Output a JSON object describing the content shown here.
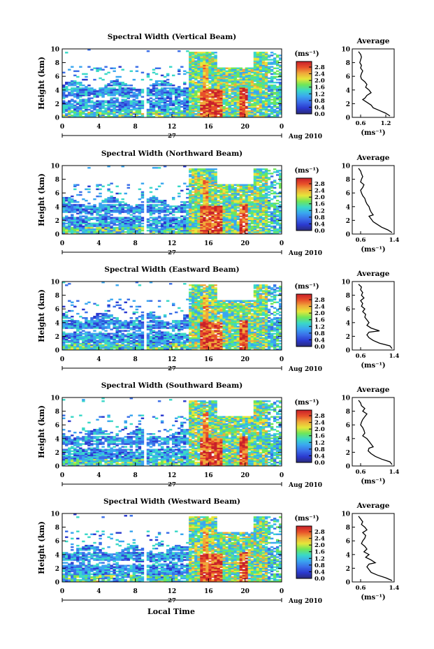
{
  "figure": {
    "xlabel": "Local Time",
    "colorbar_unit": "(ms⁻¹)",
    "avg_title": "Average",
    "avg_xlabel": "(ms⁻¹)"
  },
  "chart_data": [
    {
      "type": "heatmap",
      "title": "Spectral Width (Vertical Beam)",
      "ylabel": "Height (km)",
      "xticks": [
        "0",
        "4",
        "8",
        "12",
        "16",
        "20",
        "0"
      ],
      "xlim": [
        0,
        24
      ],
      "yticks": [
        "0",
        "2",
        "4",
        "6",
        "8",
        "10"
      ],
      "ylim": [
        0,
        10
      ],
      "date_day": "27",
      "date_label": "Aug 2010",
      "colorbar_ticks": [
        "2.8",
        "2.4",
        "2.0",
        "1.6",
        "1.2",
        "0.8",
        "0.4",
        "0.0"
      ],
      "average": {
        "xticks": [
          "0.6",
          "1.2"
        ],
        "xlim": [
          0.4,
          1.4
        ],
        "x": [
          0.55,
          0.6,
          0.62,
          0.6,
          0.58,
          0.62,
          0.6,
          0.65,
          0.62,
          0.6,
          0.62,
          0.7,
          0.75,
          0.72,
          0.8,
          0.85,
          0.75,
          0.7,
          0.65,
          0.75,
          0.85,
          0.9,
          1.05,
          1.2,
          1.3
        ],
        "y": [
          9.6,
          9.2,
          8.8,
          8.4,
          8.0,
          7.6,
          7.2,
          6.8,
          6.4,
          6.0,
          5.6,
          5.2,
          4.8,
          4.4,
          4.0,
          3.6,
          3.2,
          2.8,
          2.6,
          2.2,
          1.8,
          1.4,
          1.0,
          0.6,
          0.2
        ]
      }
    },
    {
      "type": "heatmap",
      "title": "Spectral Width (Northward Beam)",
      "ylabel": "Height (km)",
      "xticks": [
        "0",
        "4",
        "8",
        "12",
        "16",
        "20",
        "0"
      ],
      "xlim": [
        0,
        24
      ],
      "yticks": [
        "0",
        "2",
        "4",
        "6",
        "8",
        "10"
      ],
      "ylim": [
        0,
        10
      ],
      "date_day": "27",
      "date_label": "Aug 2010",
      "colorbar_ticks": [
        "2.8",
        "2.4",
        "2.0",
        "1.6",
        "1.2",
        "0.8",
        "0.4",
        "0.0"
      ],
      "average": {
        "xticks": [
          "0.6",
          "1.4"
        ],
        "xlim": [
          0.4,
          1.4
        ],
        "x": [
          0.55,
          0.6,
          0.62,
          0.65,
          0.62,
          0.6,
          0.68,
          0.65,
          0.6,
          0.62,
          0.65,
          0.7,
          0.72,
          0.75,
          0.8,
          0.82,
          0.85,
          0.9,
          0.8,
          0.85,
          0.9,
          1.0,
          1.1,
          1.25,
          1.35
        ],
        "y": [
          9.6,
          9.2,
          8.8,
          8.4,
          8.0,
          7.6,
          7.2,
          6.8,
          6.4,
          6.0,
          5.6,
          5.2,
          4.8,
          4.4,
          4.0,
          3.6,
          3.2,
          2.8,
          2.6,
          2.2,
          1.8,
          1.4,
          1.0,
          0.6,
          0.2
        ]
      }
    },
    {
      "type": "heatmap",
      "title": "Spectral Width (Eastward Beam)",
      "ylabel": "Height (km)",
      "xticks": [
        "0",
        "4",
        "8",
        "12",
        "16",
        "20",
        "0"
      ],
      "xlim": [
        0,
        24
      ],
      "yticks": [
        "0",
        "2",
        "4",
        "6",
        "8",
        "10"
      ],
      "ylim": [
        0,
        10
      ],
      "date_day": "27",
      "date_label": "Aug 2010",
      "colorbar_ticks": [
        "2.8",
        "2.4",
        "2.0",
        "1.6",
        "1.2",
        "0.8",
        "0.4",
        "0.0"
      ],
      "average": {
        "xticks": [
          "0.6",
          "1.4"
        ],
        "xlim": [
          0.4,
          1.4
        ],
        "x": [
          0.55,
          0.62,
          0.6,
          0.65,
          0.62,
          0.68,
          0.6,
          0.65,
          0.62,
          0.7,
          0.65,
          0.72,
          0.7,
          0.75,
          0.8,
          0.75,
          0.85,
          1.05,
          0.8,
          0.75,
          0.8,
          0.9,
          1.05,
          1.3,
          1.35
        ],
        "y": [
          9.6,
          9.2,
          8.8,
          8.4,
          8.0,
          7.6,
          7.2,
          6.8,
          6.4,
          6.0,
          5.6,
          5.2,
          4.8,
          4.4,
          4.0,
          3.6,
          3.2,
          2.8,
          2.6,
          2.2,
          1.8,
          1.4,
          1.0,
          0.6,
          0.2
        ]
      }
    },
    {
      "type": "heatmap",
      "title": "Spectral Width (Southward Beam)",
      "ylabel": "Height (km)",
      "xticks": [
        "0",
        "4",
        "8",
        "12",
        "16",
        "20",
        "0"
      ],
      "xlim": [
        0,
        24
      ],
      "yticks": [
        "0",
        "2",
        "4",
        "6",
        "8",
        "10"
      ],
      "ylim": [
        0,
        10
      ],
      "date_day": "27",
      "date_label": "Aug 2010",
      "colorbar_ticks": [
        "2.8",
        "2.4",
        "2.0",
        "1.6",
        "1.2",
        "0.8",
        "0.4",
        "0.0"
      ],
      "average": {
        "xticks": [
          "0.6",
          "1.4"
        ],
        "xlim": [
          0.4,
          1.4
        ],
        "x": [
          0.55,
          0.6,
          0.62,
          0.7,
          0.65,
          0.75,
          0.7,
          0.65,
          0.62,
          0.6,
          0.65,
          0.68,
          0.7,
          0.65,
          0.75,
          0.8,
          0.85,
          0.9,
          0.8,
          0.78,
          0.85,
          0.95,
          1.1,
          1.3,
          1.35
        ],
        "y": [
          9.6,
          9.2,
          8.8,
          8.4,
          8.0,
          7.6,
          7.2,
          6.8,
          6.4,
          6.0,
          5.6,
          5.2,
          4.8,
          4.4,
          4.0,
          3.6,
          3.2,
          2.8,
          2.6,
          2.2,
          1.8,
          1.4,
          1.0,
          0.6,
          0.2
        ]
      }
    },
    {
      "type": "heatmap",
      "title": "Spectral Width (Westward Beam)",
      "ylabel": "Height (km)",
      "xticks": [
        "0",
        "4",
        "8",
        "12",
        "16",
        "20",
        "0"
      ],
      "xlim": [
        0,
        24
      ],
      "yticks": [
        "0",
        "2",
        "4",
        "6",
        "8",
        "10"
      ],
      "ylim": [
        0,
        10
      ],
      "date_day": "27",
      "date_label": "Aug 2010",
      "colorbar_ticks": [
        "2.8",
        "2.4",
        "2.0",
        "1.6",
        "1.2",
        "0.8",
        "0.4",
        "0.0"
      ],
      "average": {
        "xticks": [
          "0.6",
          "1.4"
        ],
        "xlim": [
          0.4,
          1.4
        ],
        "x": [
          0.55,
          0.6,
          0.65,
          0.62,
          0.7,
          0.75,
          0.65,
          0.72,
          0.7,
          0.65,
          0.62,
          0.7,
          0.75,
          0.68,
          0.8,
          0.72,
          0.85,
          0.95,
          0.8,
          0.75,
          0.8,
          0.85,
          1.0,
          1.2,
          1.35
        ],
        "y": [
          9.6,
          9.2,
          8.8,
          8.4,
          8.0,
          7.6,
          7.2,
          6.8,
          6.4,
          6.0,
          5.6,
          5.2,
          4.8,
          4.4,
          4.0,
          3.6,
          3.2,
          2.8,
          2.6,
          2.2,
          1.8,
          1.4,
          1.0,
          0.6,
          0.2
        ]
      }
    }
  ],
  "colorscale": [
    "#2a2a7a",
    "#2b3ad0",
    "#3a6ee8",
    "#3aa6f0",
    "#3ad8c8",
    "#6ee65a",
    "#e6e63a",
    "#f0a83a",
    "#e8502a",
    "#c8202a"
  ]
}
